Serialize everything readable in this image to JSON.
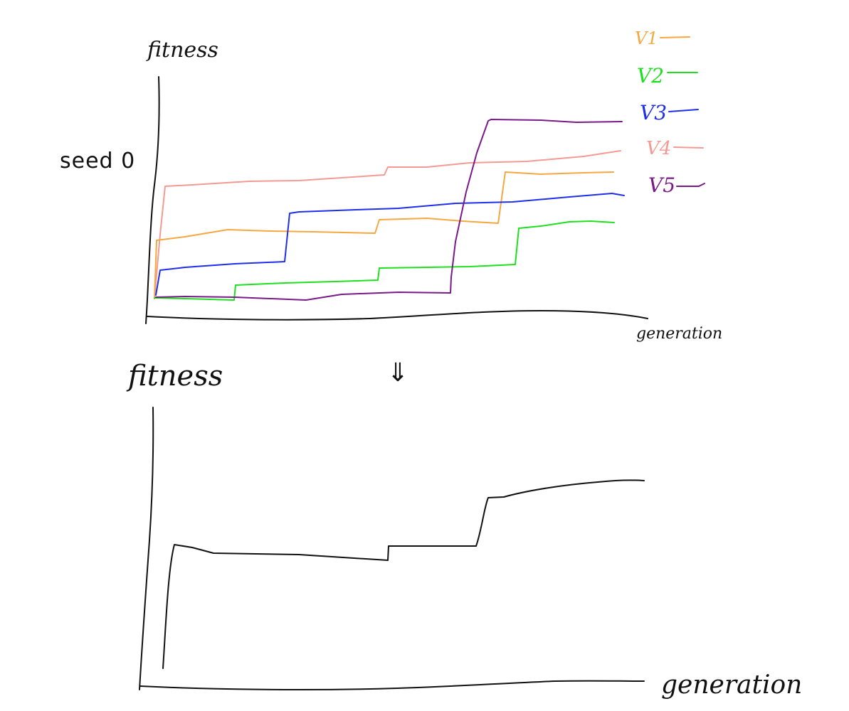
{
  "top_panel": {
    "ylabel": "fitness",
    "xlabel": "generation",
    "side_label": "seed 0"
  },
  "arrow_glyph": "⇓",
  "bottom_panel": {
    "ylabel": "fitness",
    "xlabel": "generation"
  },
  "colors": {
    "axis": "#111111",
    "V1": "#f5a742",
    "V2": "#1ee01e",
    "V3": "#1f2ee8",
    "V4": "#f49a93",
    "V5": "#7a1a8a"
  },
  "legend": [
    {
      "label": "V1",
      "color": "#f5a742"
    },
    {
      "label": "V2",
      "color": "#1ee01e"
    },
    {
      "label": "V3",
      "color": "#1f2ee8"
    },
    {
      "label": "V4",
      "color": "#f49a93"
    },
    {
      "label": "V5",
      "color": "#7a1a8a"
    }
  ]
}
